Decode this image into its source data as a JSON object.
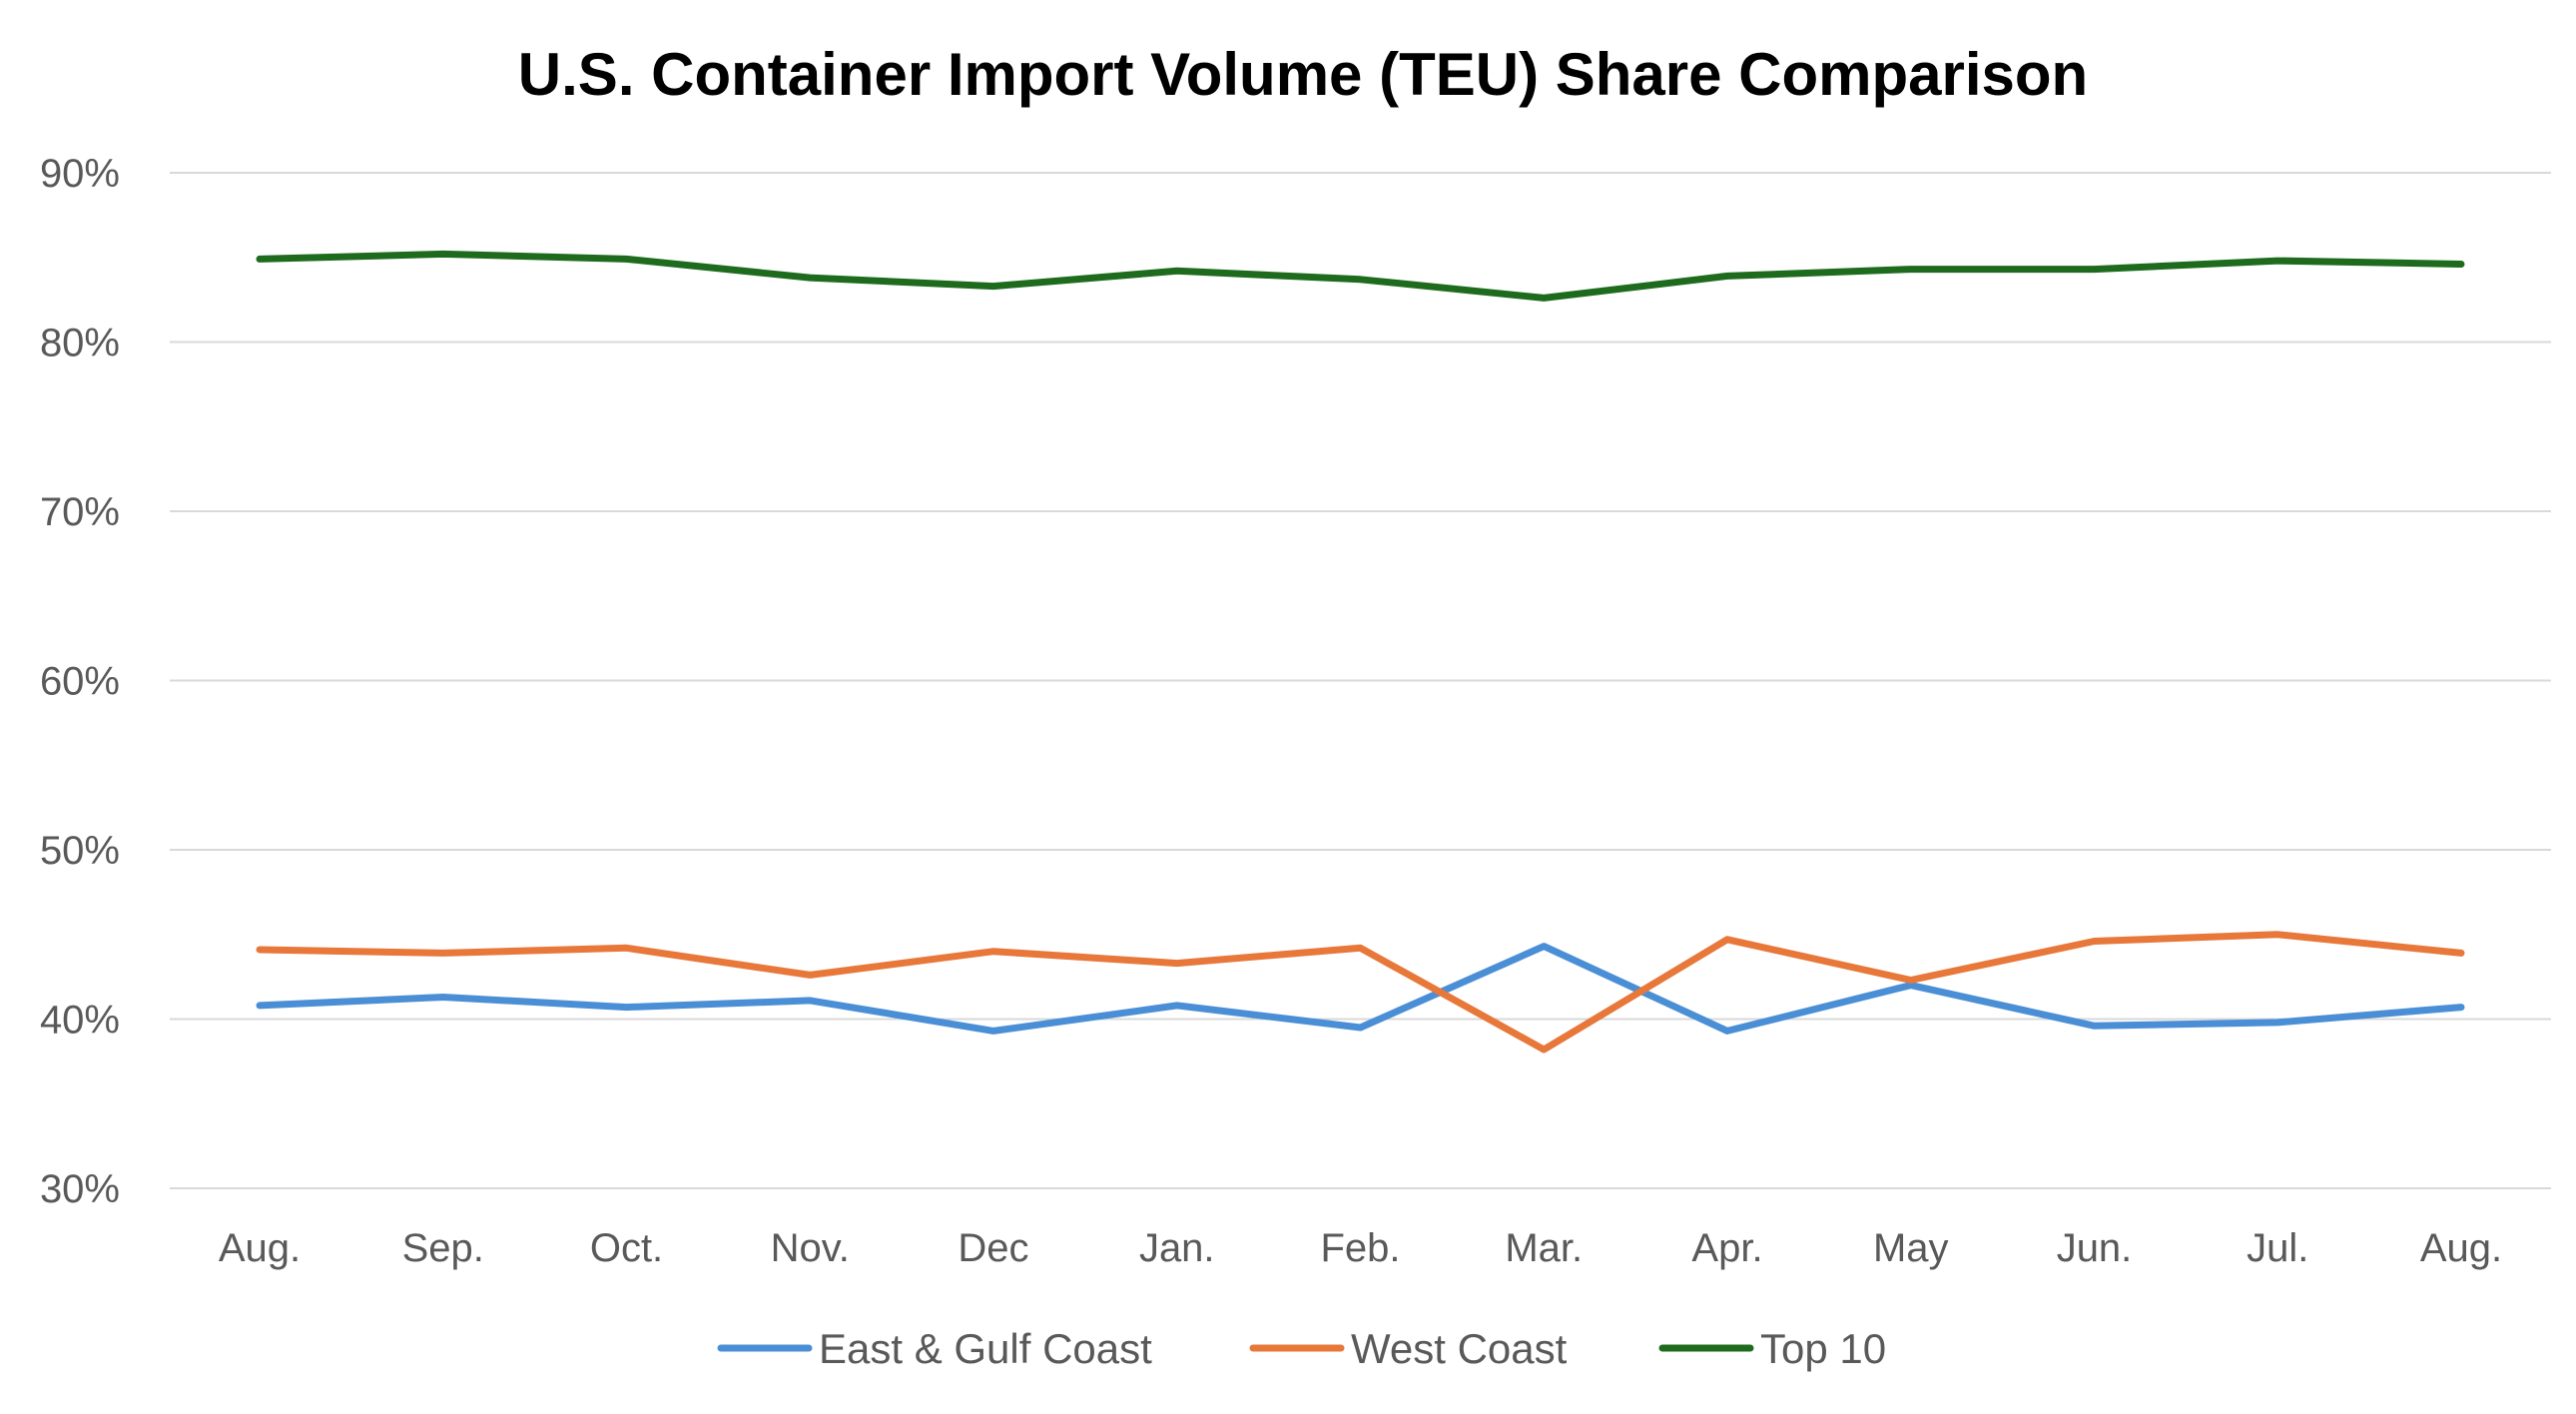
{
  "chart_data": {
    "type": "line",
    "title": "U.S. Container Import Volume (TEU) Share Comparison",
    "xlabel": "",
    "ylabel": "",
    "categories": [
      "Aug.",
      "Sep.",
      "Oct.",
      "Nov.",
      "Dec",
      "Jan.",
      "Feb.",
      "Mar.",
      "Apr.",
      "May",
      "Jun.",
      "Jul.",
      "Aug."
    ],
    "ylim": [
      0.3,
      0.9
    ],
    "yticks": [
      0.3,
      0.4,
      0.5,
      0.6,
      0.7,
      0.8,
      0.9
    ],
    "ytick_labels": [
      "30%",
      "40%",
      "50%",
      "60%",
      "70%",
      "80%",
      "90%"
    ],
    "grid": true,
    "legend_position": "bottom",
    "series": [
      {
        "name": "East & Gulf Coast",
        "color": "#4a8fd6",
        "values": [
          0.408,
          0.413,
          0.407,
          0.411,
          0.393,
          0.408,
          0.395,
          0.443,
          0.393,
          0.42,
          0.396,
          0.398,
          0.407
        ]
      },
      {
        "name": "West Coast",
        "color": "#e8773a",
        "values": [
          0.441,
          0.439,
          0.442,
          0.426,
          0.44,
          0.433,
          0.442,
          0.382,
          0.447,
          0.423,
          0.446,
          0.45,
          0.439
        ]
      },
      {
        "name": "Top 10",
        "color": "#1e6b1e",
        "values": [
          0.849,
          0.852,
          0.849,
          0.838,
          0.833,
          0.842,
          0.837,
          0.826,
          0.839,
          0.843,
          0.843,
          0.848,
          0.846
        ]
      }
    ]
  }
}
